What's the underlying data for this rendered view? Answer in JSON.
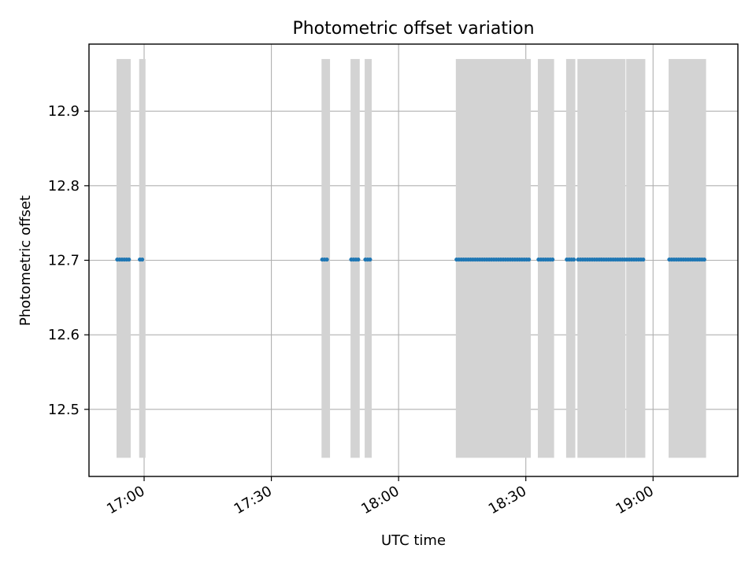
{
  "chart_data": {
    "type": "scatter",
    "title": "Photometric offset variation",
    "xlabel": "UTC time",
    "ylabel": "Photometric offset",
    "x_axis": "time",
    "xlim": [
      "16:47",
      "19:20"
    ],
    "ylim": [
      12.41,
      12.99
    ],
    "x_ticks": [
      "17:00",
      "17:30",
      "18:00",
      "18:30",
      "19:00"
    ],
    "y_ticks": [
      "12.5",
      "12.6",
      "12.7",
      "12.8",
      "12.9"
    ],
    "grid": true,
    "legend": "none",
    "colors": {
      "points": "#1f77b4",
      "bands": "#d3d3d3"
    },
    "band_y_range": [
      12.435,
      12.97
    ],
    "bands": [
      [
        "16:53:30",
        "16:56:50"
      ],
      [
        "16:58:50",
        "17:00:20"
      ],
      [
        "17:41:50",
        "17:43:50"
      ],
      [
        "17:48:40",
        "17:50:50"
      ],
      [
        "17:52:00",
        "17:53:40"
      ],
      [
        "18:13:30",
        "18:31:10"
      ],
      [
        "18:32:50",
        "18:36:40"
      ],
      [
        "18:39:30",
        "18:41:40"
      ],
      [
        "18:42:10",
        "18:53:30"
      ],
      [
        "18:53:40",
        "18:58:10"
      ],
      [
        "19:03:40",
        "19:12:30"
      ]
    ],
    "series": [
      {
        "y": 12.701,
        "segments": [
          [
            "16:53:40",
            "16:56:40"
          ],
          [
            "16:59:00",
            "17:00:00"
          ],
          [
            "17:42:00",
            "17:43:30"
          ],
          [
            "17:48:50",
            "17:50:30"
          ],
          [
            "17:52:10",
            "17:53:20"
          ],
          [
            "18:13:40",
            "18:31:00"
          ],
          [
            "18:33:00",
            "18:36:30"
          ],
          [
            "18:39:40",
            "18:41:30"
          ],
          [
            "18:42:20",
            "18:53:20"
          ],
          [
            "18:53:50",
            "18:58:00"
          ],
          [
            "19:03:50",
            "19:12:20"
          ]
        ]
      }
    ]
  }
}
